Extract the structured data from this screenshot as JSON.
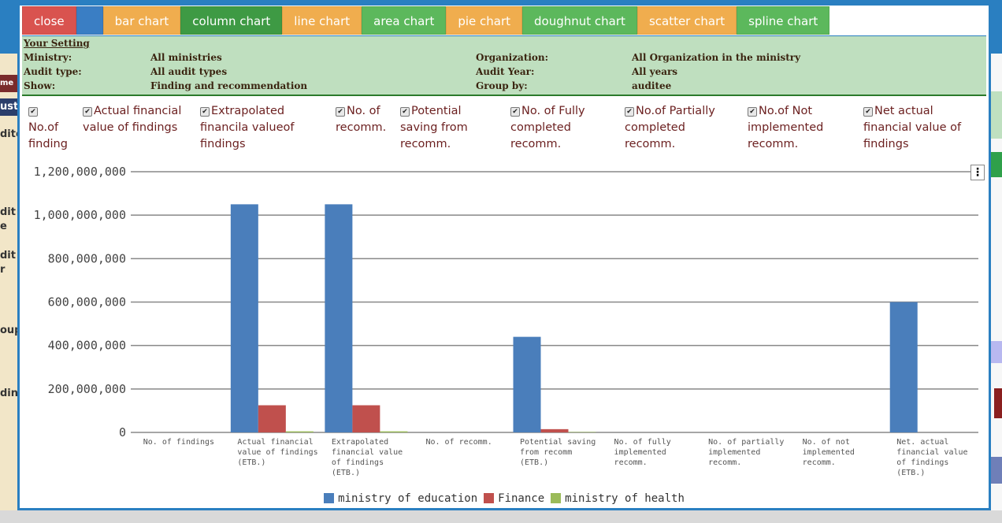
{
  "background": {
    "left_fragments": [
      "me",
      "ust",
      "dite",
      "dit",
      "e",
      "dit",
      "r",
      "oup",
      "din"
    ]
  },
  "toolbar": {
    "buttons": [
      {
        "label": "close",
        "color": "#d9534f"
      },
      {
        "label": "",
        "color": "#3a7ec4"
      },
      {
        "label": "bar chart",
        "color": "#f0ad4e"
      },
      {
        "label": "column chart",
        "color": "#3e9a44"
      },
      {
        "label": "line chart",
        "color": "#f0ad4e"
      },
      {
        "label": "area chart",
        "color": "#5cb85c"
      },
      {
        "label": "pie chart",
        "color": "#f0ad4e"
      },
      {
        "label": "doughnut chart",
        "color": "#5cb85c"
      },
      {
        "label": "scatter chart",
        "color": "#f0ad4e"
      },
      {
        "label": "spline chart",
        "color": "#5cb85c"
      }
    ]
  },
  "settings": {
    "title": "Your Setting",
    "ministry_label": "Ministry:",
    "ministry_value": "All ministries",
    "audit_type_label": "Audit type:",
    "audit_type_value": "All audit types",
    "show_label": "Show:",
    "show_value": "Finding and recommendation",
    "organization_label": "Organization:",
    "organization_value": "All Organization in the ministry",
    "audit_year_label": "Audit Year:",
    "audit_year_value": "All years",
    "group_by_label": "Group by:",
    "group_by_value": "auditee"
  },
  "checkboxes": [
    {
      "line1": "",
      "line2": "No.of",
      "line3": "finding",
      "checked": true
    },
    {
      "line1": "Actual financial",
      "line2": "value of findings",
      "line3": "",
      "checked": true
    },
    {
      "line1": "Extrapolated",
      "line2": "financila valueof",
      "line3": "findings",
      "checked": true
    },
    {
      "line1": "No. of",
      "line2": "recomm.",
      "line3": "",
      "checked": true
    },
    {
      "line1": "Potential",
      "line2": "saving from",
      "line3": "recomm.",
      "checked": true
    },
    {
      "line1": "No. of Fully",
      "line2": "completed",
      "line3": "recomm.",
      "checked": true
    },
    {
      "line1": "No.of Partially",
      "line2": "completed",
      "line3": "recomm.",
      "checked": true
    },
    {
      "line1": "No.of Not",
      "line2": "implemented",
      "line3": "recomm.",
      "checked": true
    },
    {
      "line1": "Net actual",
      "line2": "financial value of",
      "line3": "findings",
      "checked": true
    }
  ],
  "chart_menu_icon": "vertical-ellipsis-icon",
  "chart_data": {
    "type": "bar",
    "categories": [
      [
        "No. of findings"
      ],
      [
        "Actual financial",
        "value of findings",
        "(ETB.)"
      ],
      [
        "Extrapolated",
        "financial value",
        "of findings",
        "(ETB.)"
      ],
      [
        "No. of recomm."
      ],
      [
        "Potential saving",
        "from recomm",
        "(ETB.)"
      ],
      [
        "No. of fully",
        "implemented",
        "recomm."
      ],
      [
        "No. of partially",
        "implemented",
        "recomm."
      ],
      [
        "No. of not",
        "implemented",
        "recomm."
      ],
      [
        "Net. actual",
        "financial value",
        "of findings",
        "(ETB.)"
      ]
    ],
    "series": [
      {
        "name": "ministry of education",
        "color": "#4a7ebb",
        "values": [
          0,
          1050000000,
          1050000000,
          0,
          440000000,
          0,
          0,
          0,
          600000000
        ]
      },
      {
        "name": "Finance",
        "color": "#c0504d",
        "values": [
          0,
          125000000,
          125000000,
          0,
          15000000,
          0,
          0,
          0,
          0
        ]
      },
      {
        "name": "ministry of health",
        "color": "#9bbb59",
        "values": [
          0,
          5000000,
          5000000,
          0,
          2000000,
          0,
          0,
          0,
          0
        ]
      }
    ],
    "yticks": [
      "0",
      "200,000,000",
      "400,000,000",
      "600,000,000",
      "800,000,000",
      "1,000,000,000",
      "1,200,000,000"
    ],
    "ylim": [
      0,
      1200000000
    ],
    "legend_position": "bottom",
    "grid": true
  }
}
